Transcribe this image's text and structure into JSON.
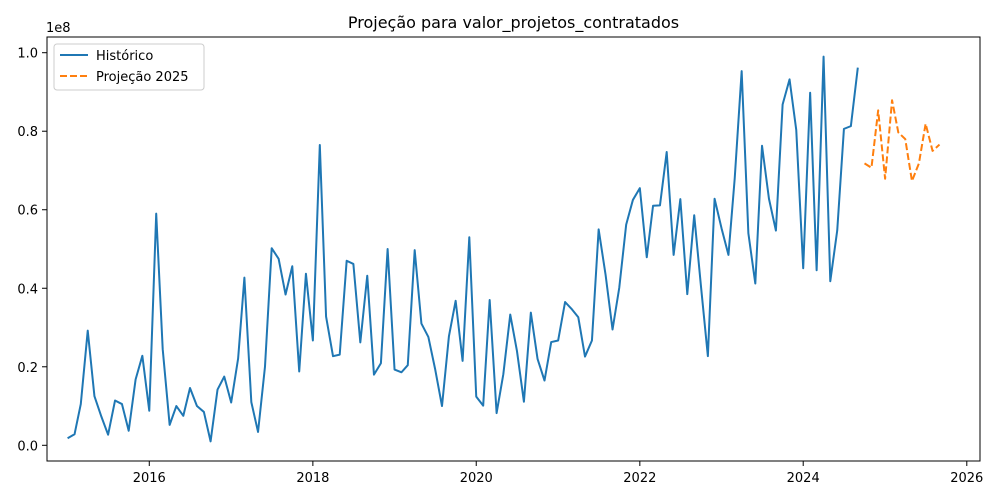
{
  "chart_data": {
    "type": "line",
    "title": "Projeção para valor_projetos_contratados",
    "xlabel": "",
    "ylabel": "",
    "y_offset_label": "1e8",
    "xlim": [
      "2014-10-01",
      "2026-03-01"
    ],
    "ylim": [
      -0.04,
      1.04
    ],
    "x_ticks": [
      {
        "date": "2016-01-01",
        "label": "2016"
      },
      {
        "date": "2018-01-01",
        "label": "2018"
      },
      {
        "date": "2020-01-01",
        "label": "2020"
      },
      {
        "date": "2022-01-01",
        "label": "2022"
      },
      {
        "date": "2024-01-01",
        "label": "2024"
      },
      {
        "date": "2026-01-01",
        "label": "2026"
      }
    ],
    "y_ticks": [
      {
        "value": 0.0,
        "label": "0.0"
      },
      {
        "value": 0.2,
        "label": "0.2"
      },
      {
        "value": 0.4,
        "label": "0.4"
      },
      {
        "value": 0.6,
        "label": "0.6"
      },
      {
        "value": 0.8,
        "label": "0.8"
      },
      {
        "value": 1.0,
        "label": "1.0"
      }
    ],
    "grid": false,
    "legend_position": "top-left",
    "series": [
      {
        "name": "Histórico",
        "color": "#1f77b4",
        "style": "solid",
        "x": [
          "2015-01",
          "2015-02",
          "2015-03",
          "2015-04",
          "2015-05",
          "2015-06",
          "2015-07",
          "2015-08",
          "2015-09",
          "2015-10",
          "2015-11",
          "2015-12",
          "2016-01",
          "2016-02",
          "2016-03",
          "2016-04",
          "2016-05",
          "2016-06",
          "2016-07",
          "2016-08",
          "2016-09",
          "2016-10",
          "2016-11",
          "2016-12",
          "2017-01",
          "2017-02",
          "2017-03",
          "2017-04",
          "2017-05",
          "2017-06",
          "2017-07",
          "2017-08",
          "2017-09",
          "2017-10",
          "2017-11",
          "2017-12",
          "2018-01",
          "2018-02",
          "2018-03",
          "2018-04",
          "2018-05",
          "2018-06",
          "2018-07",
          "2018-08",
          "2018-09",
          "2018-10",
          "2018-11",
          "2018-12",
          "2019-01",
          "2019-02",
          "2019-03",
          "2019-04",
          "2019-05",
          "2019-06",
          "2019-07",
          "2019-08",
          "2019-09",
          "2019-10",
          "2019-11",
          "2019-12",
          "2020-01",
          "2020-02",
          "2020-03",
          "2020-04",
          "2020-05",
          "2020-06",
          "2020-07",
          "2020-08",
          "2020-09",
          "2020-10",
          "2020-11",
          "2020-12",
          "2021-01",
          "2021-02",
          "2021-03",
          "2021-04",
          "2021-05",
          "2021-06",
          "2021-07",
          "2021-08",
          "2021-09",
          "2021-10",
          "2021-11",
          "2021-12",
          "2022-01",
          "2022-02",
          "2022-03",
          "2022-04",
          "2022-05",
          "2022-06",
          "2022-07",
          "2022-08",
          "2022-09",
          "2022-10",
          "2022-11",
          "2022-12",
          "2023-01",
          "2023-02",
          "2023-03",
          "2023-04",
          "2023-05",
          "2023-06",
          "2023-07",
          "2023-08",
          "2023-09",
          "2023-10",
          "2023-11",
          "2023-12",
          "2024-01",
          "2024-02",
          "2024-03",
          "2024-04",
          "2024-05",
          "2024-06",
          "2024-07",
          "2024-08",
          "2024-09"
        ],
        "values": [
          0.018,
          0.028,
          0.105,
          0.292,
          0.125,
          0.073,
          0.027,
          0.114,
          0.105,
          0.037,
          0.168,
          0.228,
          0.088,
          0.59,
          0.245,
          0.052,
          0.1,
          0.075,
          0.146,
          0.1,
          0.085,
          0.01,
          0.142,
          0.175,
          0.109,
          0.221,
          0.427,
          0.11,
          0.034,
          0.2,
          0.502,
          0.475,
          0.384,
          0.456,
          0.188,
          0.437,
          0.267,
          0.765,
          0.328,
          0.227,
          0.231,
          0.47,
          0.462,
          0.262,
          0.432,
          0.18,
          0.209,
          0.5,
          0.193,
          0.186,
          0.204,
          0.497,
          0.31,
          0.276,
          0.195,
          0.1,
          0.278,
          0.368,
          0.215,
          0.53,
          0.124,
          0.101,
          0.37,
          0.082,
          0.181,
          0.333,
          0.24,
          0.111,
          0.338,
          0.22,
          0.165,
          0.263,
          0.267,
          0.365,
          0.348,
          0.326,
          0.226,
          0.267,
          0.55,
          0.434,
          0.295,
          0.401,
          0.562,
          0.625,
          0.655,
          0.479,
          0.61,
          0.611,
          0.747,
          0.485,
          0.627,
          0.385,
          0.586,
          0.406,
          0.227,
          0.628,
          0.553,
          0.485,
          0.68,
          0.953,
          0.54,
          0.412,
          0.763,
          0.628,
          0.547,
          0.868,
          0.932,
          0.803,
          0.451,
          0.898,
          0.446,
          0.99,
          0.418,
          0.547,
          0.806,
          0.813,
          0.962
        ]
      },
      {
        "name": "Projeção 2025",
        "color": "#ff7f0e",
        "style": "dashed",
        "x": [
          "2024-10",
          "2024-11",
          "2024-12",
          "2025-01",
          "2025-02",
          "2025-03",
          "2025-04",
          "2025-05",
          "2025-06",
          "2025-07",
          "2025-08",
          "2025-09"
        ],
        "values": [
          0.718,
          0.707,
          0.853,
          0.679,
          0.879,
          0.797,
          0.78,
          0.673,
          0.718,
          0.819,
          0.75,
          0.766
        ]
      }
    ]
  }
}
